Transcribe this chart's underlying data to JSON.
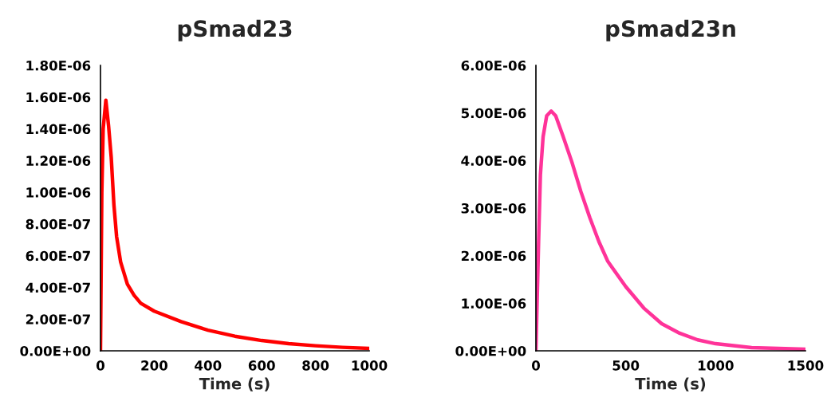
{
  "chart_data": [
    {
      "type": "line",
      "title": "pSmad23",
      "xlabel": "Time (s)",
      "series": [
        {
          "color": "#ff0000",
          "x": [
            0,
            5,
            10,
            20,
            30,
            40,
            50,
            60,
            75,
            100,
            125,
            150,
            200,
            300,
            400,
            500,
            600,
            700,
            800,
            900,
            1000
          ],
          "values": [
            0,
            1e-06,
            1.4e-06,
            1.58e-06,
            1.42e-06,
            1.22e-06,
            9.2e-07,
            7.2e-07,
            5.6e-07,
            4.2e-07,
            3.5e-07,
            3e-07,
            2.5e-07,
            1.84e-07,
            1.3e-07,
            9.2e-08,
            6.5e-08,
            4.5e-08,
            3.2e-08,
            2.2e-08,
            1.5e-08
          ]
        }
      ],
      "xlim": [
        0,
        1000
      ],
      "xticks": [
        0,
        200,
        400,
        600,
        800,
        1000
      ],
      "ylim": [
        0,
        1.8e-06
      ],
      "yticks": [
        {
          "value": 0,
          "label": "0.00E+00"
        },
        {
          "value": 2e-07,
          "label": "2.00E-07"
        },
        {
          "value": 4e-07,
          "label": "4.00E-07"
        },
        {
          "value": 6e-07,
          "label": "6.00E-07"
        },
        {
          "value": 8e-07,
          "label": "8.00E-07"
        },
        {
          "value": 1e-06,
          "label": "1.00E-06"
        },
        {
          "value": 1.2e-06,
          "label": "1.20E-06"
        },
        {
          "value": 1.4e-06,
          "label": "1.40E-06"
        },
        {
          "value": 1.6e-06,
          "label": "1.60E-06"
        },
        {
          "value": 1.8e-06,
          "label": "1.80E-06"
        }
      ],
      "grid": false,
      "marker": "none",
      "line_style": "solid"
    },
    {
      "type": "line",
      "title": "pSmad23n",
      "xlabel": "Time (s)",
      "series": [
        {
          "color": "#ff3399",
          "x": [
            0,
            15,
            25,
            40,
            60,
            85,
            110,
            150,
            200,
            250,
            300,
            350,
            400,
            500,
            600,
            700,
            800,
            900,
            1000,
            1200,
            1500
          ],
          "values": [
            0,
            2.3e-06,
            3.7e-06,
            4.5e-06,
            4.94e-06,
            5.04e-06,
            4.94e-06,
            4.52e-06,
            3.97e-06,
            3.35e-06,
            2.8e-06,
            2.3e-06,
            1.88e-06,
            1.35e-06,
            9e-07,
            5.7e-07,
            3.7e-07,
            2.3e-07,
            1.5e-07,
            6.7e-08,
            3.3e-08
          ]
        }
      ],
      "xlim": [
        0,
        1500
      ],
      "xticks": [
        0,
        500,
        1000,
        1500
      ],
      "ylim": [
        0,
        6e-06
      ],
      "yticks": [
        {
          "value": 0,
          "label": "0.00E+00"
        },
        {
          "value": 1e-06,
          "label": "1.00E-06"
        },
        {
          "value": 2e-06,
          "label": "2.00E-06"
        },
        {
          "value": 3e-06,
          "label": "3.00E-06"
        },
        {
          "value": 4e-06,
          "label": "4.00E-06"
        },
        {
          "value": 5e-06,
          "label": "5.00E-06"
        },
        {
          "value": 6e-06,
          "label": "6.00E-06"
        }
      ],
      "grid": false,
      "marker": "none",
      "line_style": "solid"
    }
  ]
}
